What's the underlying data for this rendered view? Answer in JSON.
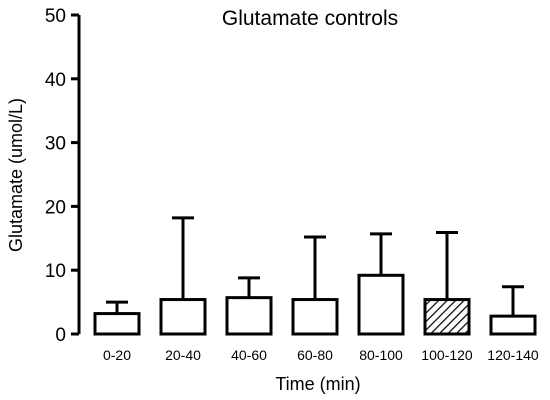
{
  "chart_data": {
    "type": "bar",
    "title": "Glutamate controls",
    "xlabel": "Time (min)",
    "ylabel": "Glutamate (umol/L)",
    "categories": [
      "0-20",
      "20-40",
      "40-60",
      "60-80",
      "80-100",
      "100-120",
      "120-140"
    ],
    "series": [
      {
        "values": [
          3.2,
          5.4,
          5.7,
          5.4,
          9.2,
          5.4,
          2.8
        ],
        "error_upper": [
          5.0,
          18.2,
          8.8,
          15.2,
          15.7,
          15.9,
          7.4
        ],
        "hatched": [
          false,
          false,
          false,
          false,
          false,
          true,
          false
        ]
      }
    ],
    "yticks": [
      0,
      10,
      20,
      30,
      40,
      50
    ],
    "ylim": [
      0,
      50
    ],
    "grid": false,
    "legend": "none",
    "colors": {
      "bar_fill": "#ffffff",
      "bar_stroke": "#000000",
      "hatch": "#000000",
      "axis": "#000000"
    }
  }
}
